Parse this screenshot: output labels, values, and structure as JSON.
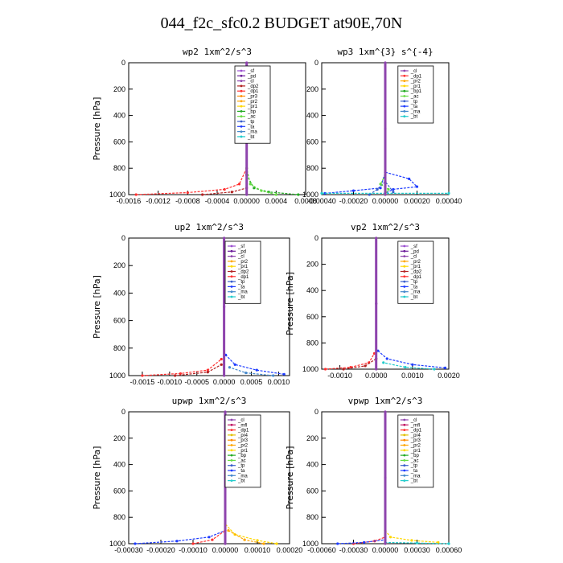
{
  "title": "044_f2c_sfc0.2  BUDGET at90E,70N",
  "colors": {
    "sf": "#9b4fd0",
    "pd": "#6a1b9a",
    "cl": "#8e44ad",
    "dp2": "#b22222",
    "dp1": "#ff3030",
    "pr3": "#ff8c00",
    "pr2": "#ffa500",
    "pr1": "#ffd700",
    "pr4": "#e0c000",
    "bp": "#22aa22",
    "bp1": "#22aa22",
    "ac": "#66dd44",
    "tp": "#3a5fcd",
    "ta": "#1e3cff",
    "ma": "#4488cc",
    "bt": "#22cccc",
    "mfl": "#c01060"
  },
  "chart_data": [
    {
      "type": "line",
      "title": "wp2   1xm^2/s^3",
      "ylabel": "Pressure [hPa]",
      "ylim": [
        1000,
        0
      ],
      "yticks": [
        0,
        200,
        400,
        600,
        800,
        1000
      ],
      "xlim": [
        -0.0016,
        0.0008
      ],
      "xticks": [
        -0.0016,
        -0.0012,
        -0.0008,
        -0.0004,
        0.0,
        0.0004,
        0.0008
      ],
      "xtick_labels": [
        "-0.0016",
        "-0.0012",
        "-0.0008",
        "-0.0004",
        "0.00000",
        "0.0004",
        "0.0008"
      ],
      "legend": [
        "_sf",
        "_pd",
        "_cl",
        "_dp2",
        "_dp1",
        "_pr3",
        "_pr2",
        "_pr1",
        "_bp",
        "_ac",
        "_tp",
        "_ta",
        "_ma",
        "_bt"
      ],
      "series": [
        {
          "name": "_dp1",
          "x": [
            -0.0015,
            -0.0008,
            -0.0003,
            -0.0001,
            0.0
          ],
          "y": [
            1000,
            985,
            960,
            920,
            800
          ]
        },
        {
          "name": "_dp2",
          "x": [
            -0.0006,
            -0.0002,
            0.0,
            0.0
          ],
          "y": [
            1000,
            980,
            950,
            850
          ]
        },
        {
          "name": "_bp",
          "x": [
            0.0007,
            0.0003,
            0.0001,
            0.0
          ],
          "y": [
            1000,
            980,
            950,
            850
          ]
        },
        {
          "name": "_ac",
          "x": [
            0.0004,
            0.0002,
            5e-05,
            0.0
          ],
          "y": [
            1000,
            970,
            920,
            800
          ]
        },
        {
          "name": "_cl",
          "x": [
            0.0,
            0.0,
            0.0
          ],
          "y": [
            0,
            500,
            1000
          ]
        }
      ]
    },
    {
      "type": "line",
      "title": "wp3   1xm^{3} s^{-4}",
      "ylabel": "",
      "ylim": [
        1000,
        0
      ],
      "yticks": [
        0,
        200,
        400,
        600,
        800,
        1000
      ],
      "xlim": [
        -0.0004,
        0.0004
      ],
      "xticks": [
        -0.0004,
        -0.0002,
        0.0,
        0.0002,
        0.0004
      ],
      "xtick_labels": [
        "-0.00040",
        "-0.00020",
        "0.00000",
        "0.00020",
        "0.00040"
      ],
      "legend": [
        "_cl",
        "_dp1",
        "_pr2",
        "_pr1",
        "_bp1",
        "_ac",
        "_tp",
        "_ta",
        "_ma",
        "_bt"
      ],
      "series": [
        {
          "name": "_ta",
          "x": [
            -0.00038,
            -0.0002,
            -3e-05,
            0.0,
            0.00015,
            0.0002,
            5e-05,
            0.0
          ],
          "y": [
            990,
            970,
            950,
            830,
            880,
            940,
            960,
            990
          ]
        },
        {
          "name": "_tp",
          "x": [
            -0.0001,
            -5e-05,
            0.0,
            5e-05
          ],
          "y": [
            1000,
            960,
            900,
            980
          ]
        },
        {
          "name": "_bt",
          "x": [
            -0.0004,
            0.0,
            0.0004
          ],
          "y": [
            990,
            990,
            990
          ]
        },
        {
          "name": "_ac",
          "x": [
            0.0,
            -3e-05,
            2e-05,
            0.0
          ],
          "y": [
            850,
            920,
            960,
            1000
          ]
        },
        {
          "name": "_cl",
          "x": [
            0.0,
            0.0,
            0.0
          ],
          "y": [
            0,
            500,
            1000
          ]
        }
      ]
    },
    {
      "type": "line",
      "title": "up2   1xm^2/s^3",
      "ylabel": "Pressure [hPa]",
      "ylim": [
        1000,
        0
      ],
      "yticks": [
        0,
        200,
        400,
        600,
        800,
        1000
      ],
      "xlim": [
        -0.00175,
        0.0012
      ],
      "xticks": [
        -0.0015,
        -0.001,
        -0.0005,
        0.0,
        0.0005,
        0.001
      ],
      "xtick_labels": [
        "-0.0015",
        "-0.0010",
        "-0.0005",
        "0.0000",
        "0.0005",
        "0.0010"
      ],
      "legend": [
        "_sf",
        "_pd",
        "_cl",
        "_pr2",
        "_pr1",
        "_dp2",
        "_dp1",
        "_tp",
        "_ta",
        "_ma",
        "_bt"
      ],
      "series": [
        {
          "name": "_dp1",
          "x": [
            -0.0015,
            -0.0008,
            -0.0003,
            -5e-05
          ],
          "y": [
            1000,
            985,
            960,
            880
          ]
        },
        {
          "name": "_dp2",
          "x": [
            -0.0009,
            -0.0003,
            -5e-05
          ],
          "y": [
            1000,
            975,
            920
          ]
        },
        {
          "name": "_ta",
          "x": [
            0.0011,
            0.0006,
            0.0002,
            3e-05
          ],
          "y": [
            990,
            960,
            920,
            850
          ]
        },
        {
          "name": "_ma",
          "x": [
            0.0009,
            0.0004,
            0.0001
          ],
          "y": [
            1000,
            980,
            940
          ]
        },
        {
          "name": "_cl",
          "x": [
            0.0,
            0.0,
            0.0
          ],
          "y": [
            0,
            500,
            1000
          ]
        }
      ]
    },
    {
      "type": "line",
      "title": "vp2   1xm^2/s^3",
      "ylabel": "Pressure [hPa]",
      "ylim": [
        1000,
        0
      ],
      "yticks": [
        0,
        200,
        400,
        600,
        800,
        1000
      ],
      "xlim": [
        -0.0015,
        0.002
      ],
      "xticks": [
        -0.001,
        0.0,
        0.001,
        0.002
      ],
      "xtick_labels": [
        "-0.0010",
        "0.0000",
        "0.0010",
        "0.0020"
      ],
      "legend": [
        "_sf",
        "_pd",
        "_cl",
        "_pr2",
        "_pr1",
        "_dp2",
        "_dp1",
        "_tp",
        "_ta",
        "_ma",
        "_bt"
      ],
      "series": [
        {
          "name": "_dp1",
          "x": [
            -0.0014,
            -0.0007,
            -0.0002,
            -5e-05
          ],
          "y": [
            1000,
            985,
            950,
            880
          ]
        },
        {
          "name": "_dp2",
          "x": [
            -0.0009,
            -0.0003,
            0.0
          ],
          "y": [
            1000,
            975,
            920
          ]
        },
        {
          "name": "_ta",
          "x": [
            0.0019,
            0.001,
            0.0003,
            5e-05
          ],
          "y": [
            990,
            965,
            920,
            860
          ]
        },
        {
          "name": "_bt",
          "x": [
            0.0016,
            0.0008,
            0.0002
          ],
          "y": [
            1000,
            985,
            950
          ]
        },
        {
          "name": "_cl",
          "x": [
            0.0,
            0.0,
            0.0
          ],
          "y": [
            0,
            500,
            1000
          ]
        }
      ]
    },
    {
      "type": "line",
      "title": "upwp   1xm^2/s^3",
      "ylabel": "Pressure [hPa]",
      "ylim": [
        1000,
        0
      ],
      "yticks": [
        0,
        200,
        400,
        600,
        800,
        1000
      ],
      "xlim": [
        -0.0003,
        0.0002
      ],
      "xticks": [
        -0.0003,
        -0.0002,
        -0.0001,
        0.0,
        0.0001,
        0.0002
      ],
      "xtick_labels": [
        "-0.00030",
        "-0.00020",
        "-0.00010",
        "0.00000",
        "0.00010",
        "0.00020"
      ],
      "legend": [
        "_cl",
        "_mfl",
        "_dp1",
        "_pr4",
        "_pr3",
        "_pr2",
        "_pr1",
        "_bp",
        "_ac",
        "_tp",
        "_ta",
        "_ma",
        "_bt"
      ],
      "series": [
        {
          "name": "_ta",
          "x": [
            -0.00028,
            -0.00015,
            -5e-05,
            0.0
          ],
          "y": [
            1000,
            980,
            950,
            900
          ]
        },
        {
          "name": "_pr1",
          "x": [
            0.00016,
            0.0001,
            3e-05,
            0.0
          ],
          "y": [
            1000,
            975,
            930,
            850
          ]
        },
        {
          "name": "_pr2",
          "x": [
            0.00012,
            6e-05,
            1e-05
          ],
          "y": [
            1000,
            970,
            900
          ]
        },
        {
          "name": "_dp1",
          "x": [
            -0.0001,
            -4e-05,
            0.0
          ],
          "y": [
            1000,
            970,
            900
          ]
        },
        {
          "name": "_cl",
          "x": [
            0.0,
            0.0,
            0.0
          ],
          "y": [
            0,
            500,
            1000
          ]
        }
      ]
    },
    {
      "type": "line",
      "title": "vpwp   1xm^2/s^3",
      "ylabel": "Pressure [hPa]",
      "ylim": [
        1000,
        0
      ],
      "yticks": [
        0,
        200,
        400,
        600,
        800,
        1000
      ],
      "xlim": [
        -0.0006,
        0.0006
      ],
      "xticks": [
        -0.0006,
        -0.0003,
        0.0,
        0.0003,
        0.0006
      ],
      "xtick_labels": [
        "-0.00060",
        "-0.00030",
        "0.00000",
        "0.00030",
        "0.00060"
      ],
      "legend": [
        "_cl",
        "_mfl",
        "_dp1",
        "_pr4",
        "_pr3",
        "_pr2",
        "_pr1",
        "_bp",
        "_ac",
        "_tp",
        "_ta",
        "_ma",
        "_bt"
      ],
      "series": [
        {
          "name": "_dp1",
          "x": [
            -0.0003,
            -0.0001,
            0.0
          ],
          "y": [
            1000,
            980,
            950
          ]
        },
        {
          "name": "_pr1",
          "x": [
            0.0005,
            0.00025,
            5e-05,
            0.0
          ],
          "y": [
            990,
            975,
            950,
            900
          ]
        },
        {
          "name": "_ta",
          "x": [
            -0.00045,
            -0.0002,
            0.0
          ],
          "y": [
            1000,
            990,
            970
          ]
        },
        {
          "name": "_bt",
          "x": [
            0.0006,
            0.0003,
            0.0
          ],
          "y": [
            1000,
            995,
            990
          ]
        },
        {
          "name": "_cl",
          "x": [
            0.0,
            0.0,
            0.0
          ],
          "y": [
            0,
            500,
            1000
          ]
        }
      ]
    }
  ]
}
